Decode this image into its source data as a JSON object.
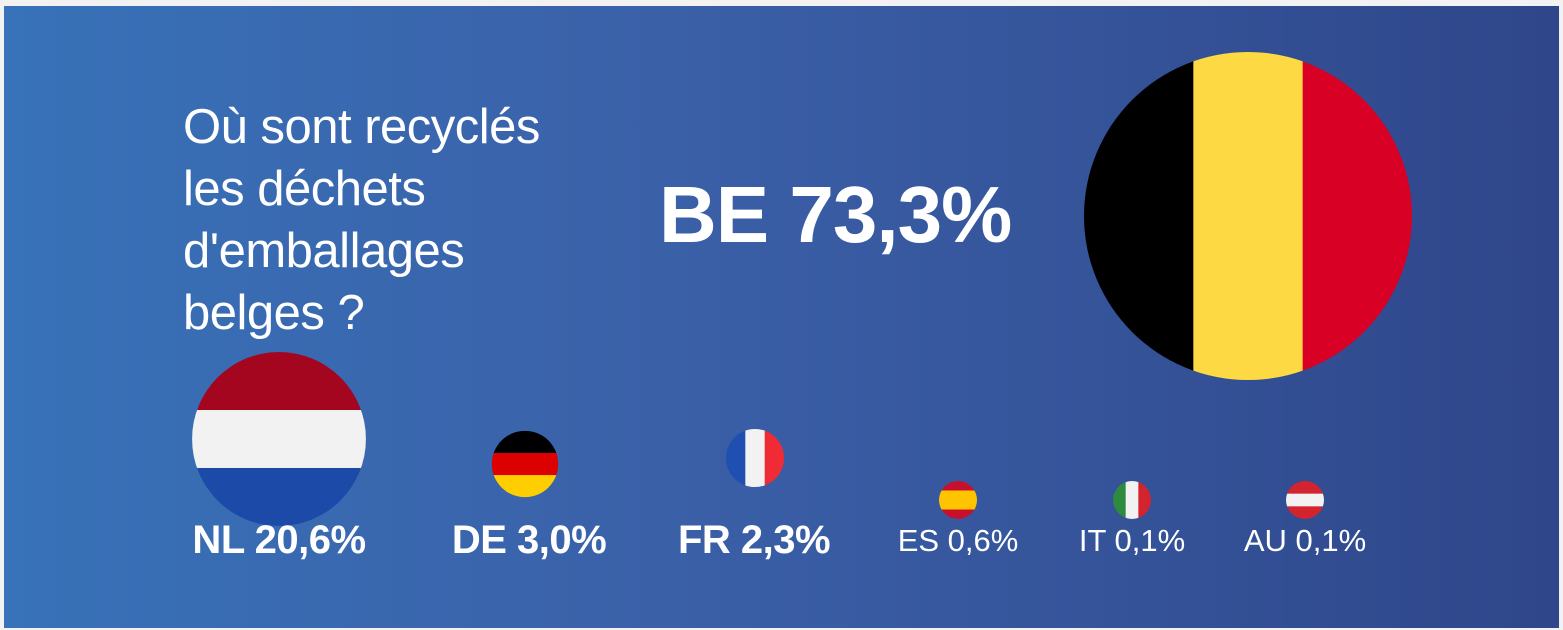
{
  "headline": {
    "lines": [
      "Où sont recyclés",
      "les déchets",
      "d'emballages",
      "belges ?"
    ]
  },
  "chart_data": {
    "type": "bubble",
    "title": "Où sont recyclés les déchets d'emballages belges ?",
    "unit": "%",
    "countries": [
      {
        "code": "BE",
        "value": 73.3,
        "label": "BE 73,3%",
        "flag": "belgium-flag",
        "colors": [
          "#000000",
          "#fdd944",
          "#d90026"
        ],
        "stripes": "vertical"
      },
      {
        "code": "NL",
        "value": 20.6,
        "label": "NL 20,6%",
        "flag": "netherlands-flag",
        "colors": [
          "#a4051f",
          "#f2f2f2",
          "#1c4aa8"
        ],
        "stripes": "horizontal"
      },
      {
        "code": "DE",
        "value": 3.0,
        "label": "DE 3,0%",
        "flag": "germany-flag",
        "colors": [
          "#000000",
          "#dd0000",
          "#ffce00"
        ],
        "stripes": "horizontal"
      },
      {
        "code": "FR",
        "value": 2.3,
        "label": "FR 2,3%",
        "flag": "france-flag",
        "colors": [
          "#1f4fb0",
          "#f2f2f2",
          "#ef2b35"
        ],
        "stripes": "vertical"
      },
      {
        "code": "ES",
        "value": 0.6,
        "label": "ES 0,6%",
        "flag": "spain-flag",
        "colors": [
          "#c8102e",
          "#ffc400",
          "#c8102e"
        ],
        "stripes": "spain"
      },
      {
        "code": "IT",
        "value": 0.1,
        "label": "IT 0,1%",
        "flag": "italy-flag",
        "colors": [
          "#2d8a3e",
          "#f2f2f2",
          "#d3232f"
        ],
        "stripes": "vertical"
      },
      {
        "code": "AU",
        "value": 0.1,
        "label": "AU 0,1%",
        "flag": "austria-flag",
        "colors": [
          "#d3232f",
          "#f2f2f2",
          "#d3232f"
        ],
        "stripes": "horizontal"
      }
    ]
  }
}
